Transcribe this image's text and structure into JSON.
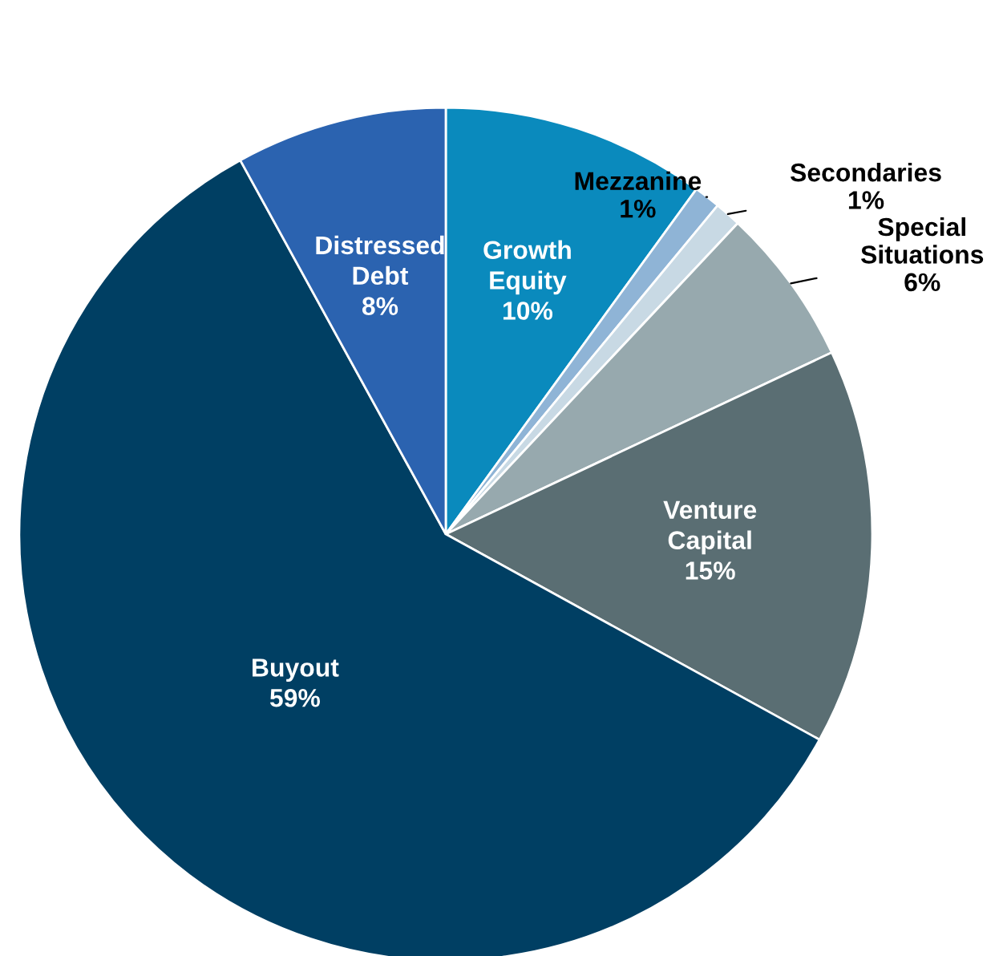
{
  "chart_data": {
    "type": "pie",
    "categories": [
      "Growth\nEquity",
      "Mezzanine",
      "Secondaries",
      "Special\nSituations",
      "Venture\nCapital",
      "Buyout",
      "Distressed\nDebt"
    ],
    "values": [
      10,
      1,
      1,
      6,
      15,
      59,
      8
    ],
    "colors": [
      "#0a8abd",
      "#8fb4d6",
      "#c8d9e4",
      "#97a9ae",
      "#5a6e73",
      "#003f63",
      "#2b63b0"
    ],
    "value_labels": [
      "10%",
      "1%",
      "1%",
      "6%",
      "15%",
      "59%",
      "8%"
    ]
  }
}
